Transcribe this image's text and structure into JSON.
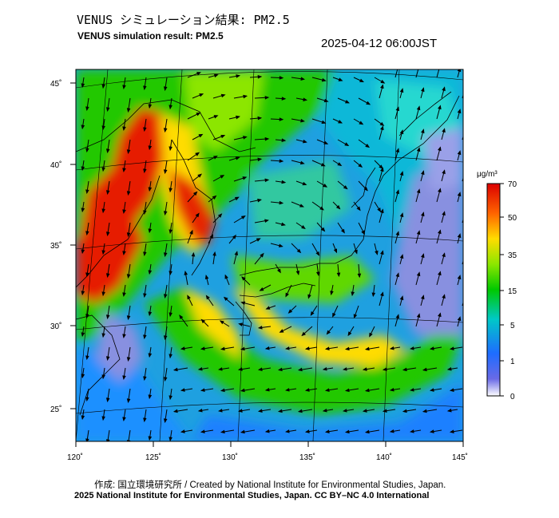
{
  "header": {
    "title_ja": "VENUS シミュレーション結果: PM2.5",
    "title_en": "VENUS simulation result: PM2.5",
    "timestamp": "2025-04-12 06:00JST"
  },
  "map": {
    "lon_ticks": [
      "120˚",
      "125˚",
      "130˚",
      "135˚",
      "140˚",
      "145˚"
    ],
    "lat_ticks": [
      "45˚",
      "40˚",
      "35˚",
      "30˚",
      "25˚"
    ]
  },
  "colorbar": {
    "unit": "μg/m³",
    "ticks": [
      "70",
      "50",
      "35",
      "15",
      "5",
      "1",
      "0"
    ],
    "colors": [
      "#ffffff",
      "#6a6ae6",
      "#1e6cff",
      "#00c8c8",
      "#00c800",
      "#8ce600",
      "#ffdc00",
      "#ff6400",
      "#dc0000"
    ]
  },
  "footer": {
    "credit_ja": "作成: 国立環境研究所 / Created by National Institute for Environmental Studies, Japan.",
    "credit_en": "2025 National Institute for Environmental Studies, Japan. CC BY–NC 4.0 International"
  }
}
